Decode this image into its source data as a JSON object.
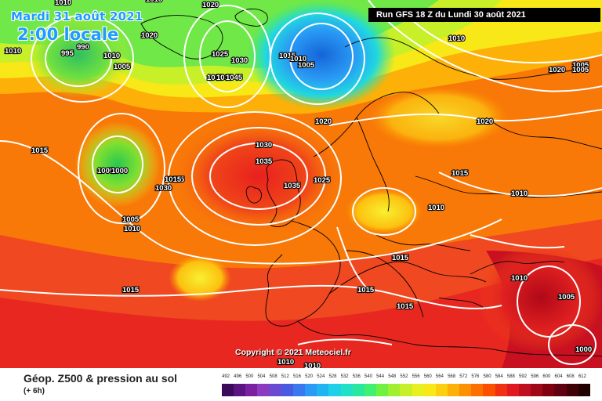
{
  "header": {
    "date": "Mardi 31 août 2021",
    "local_time": "2:00 locale",
    "run_info": "Run GFS 18 Z du Lundi 30 août 2021"
  },
  "footer": {
    "title": "Géop. Z500 & pression au sol",
    "subtitle": "(+ 6h)",
    "copyright": "Copyright © 2021 Meteociel.fr"
  },
  "scale": {
    "labels": [
      "492",
      "496",
      "500",
      "504",
      "508",
      "512",
      "516",
      "520",
      "524",
      "528",
      "532",
      "536",
      "540",
      "544",
      "548",
      "552",
      "556",
      "560",
      "564",
      "568",
      "572",
      "576",
      "580",
      "584",
      "588",
      "592",
      "596",
      "600",
      "604",
      "608",
      "612"
    ],
    "colors": [
      "#3b0a5a",
      "#5a1580",
      "#7a20a0",
      "#8c3bc0",
      "#6a4ad0",
      "#4a5ae0",
      "#3a78f0",
      "#2a9af5",
      "#20b5f0",
      "#20d0e8",
      "#20e0c8",
      "#28e8a0",
      "#40f070",
      "#70f040",
      "#a0f030",
      "#c8f028",
      "#e8f020",
      "#f8e818",
      "#fcd010",
      "#fcb008",
      "#fc9000",
      "#fc7000",
      "#fa5000",
      "#f03010",
      "#e01820",
      "#c01020",
      "#a00818",
      "#800010",
      "#600010",
      "#400008",
      "#200000"
    ]
  },
  "isobars": [
    "1010",
    "1020",
    "995",
    "990",
    "1010",
    "1005",
    "1020",
    "1025",
    "1030",
    "1035",
    "1035",
    "1045",
    "1015",
    "1010",
    "1005",
    "1030",
    "1020",
    "1015",
    "1010",
    "1005",
    "1000",
    "1005",
    "1035",
    "1025",
    "1035",
    "1030",
    "1015",
    "1010",
    "1015",
    "1015",
    "1020",
    "1010",
    "1005",
    "1020",
    "1015",
    "1010",
    "1005",
    "1000",
    "1010",
    "1005",
    "1015",
    "1010",
    "1015",
    "1015",
    "1015",
    "1010",
    "1010"
  ],
  "colors": {
    "title_blue": "#1e9cff",
    "isobar": "#ffffff",
    "coast": "#000000"
  }
}
